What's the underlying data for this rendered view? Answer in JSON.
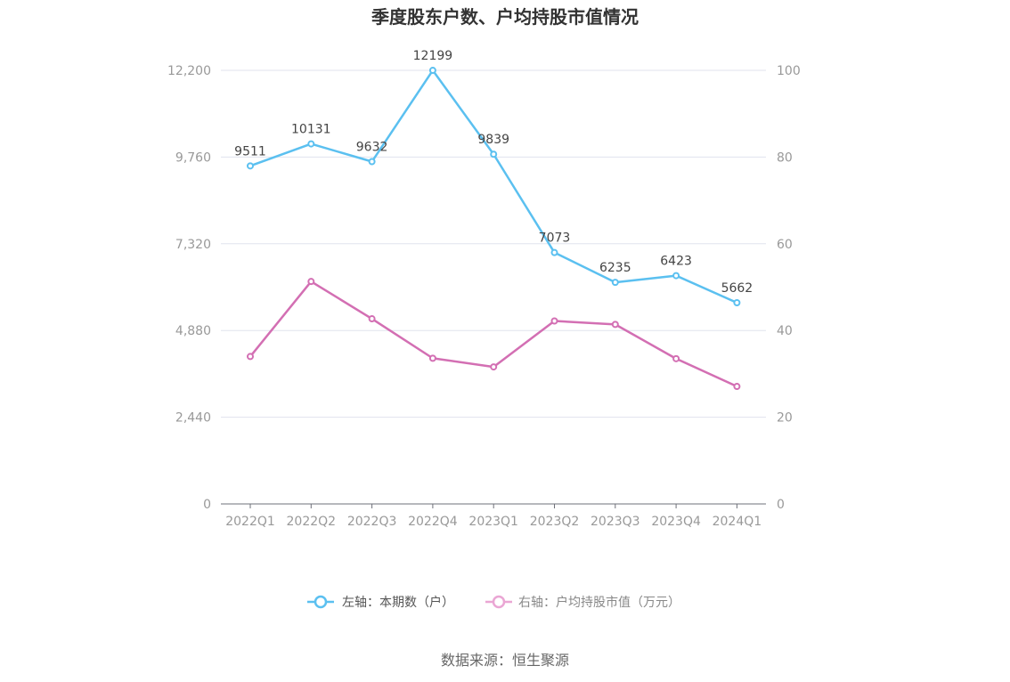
{
  "chart_data": {
    "type": "line",
    "title": "季度股东户数、户均持股市值情况",
    "categories": [
      "2022Q1",
      "2022Q2",
      "2022Q3",
      "2022Q4",
      "2023Q1",
      "2023Q2",
      "2023Q3",
      "2023Q4",
      "2024Q1"
    ],
    "left_axis": {
      "ylim": [
        0,
        12200
      ],
      "ticks": [
        "0",
        "2,440",
        "4,880",
        "7,320",
        "9,760",
        "12,200"
      ],
      "tick_values": [
        0,
        2440,
        4880,
        7320,
        9760,
        12200
      ]
    },
    "right_axis": {
      "ylim": [
        0,
        100
      ],
      "ticks": [
        "0",
        "20",
        "40",
        "60",
        "80",
        "100"
      ],
      "tick_values": [
        0,
        20,
        40,
        60,
        80,
        100
      ]
    },
    "grid": true,
    "legend_position": "bottom",
    "series": [
      {
        "name": "左轴：本期数（户）",
        "axis": "left",
        "color": "#5bc0f0",
        "values": [
          9511,
          10131,
          9632,
          12199,
          9839,
          7073,
          6235,
          6423,
          5662
        ],
        "labels": [
          "9511",
          "10131",
          "9632",
          "12199",
          "9839",
          "7073",
          "6235",
          "6423",
          "5662"
        ]
      },
      {
        "name": "右轴：户均持股市值（万元）",
        "axis": "right",
        "color": "#d36fb3",
        "values": [
          34.0,
          51.3,
          42.7,
          33.6,
          31.6,
          42.2,
          41.4,
          33.5,
          27.1
        ]
      }
    ],
    "source": "数据来源：恒生聚源"
  }
}
